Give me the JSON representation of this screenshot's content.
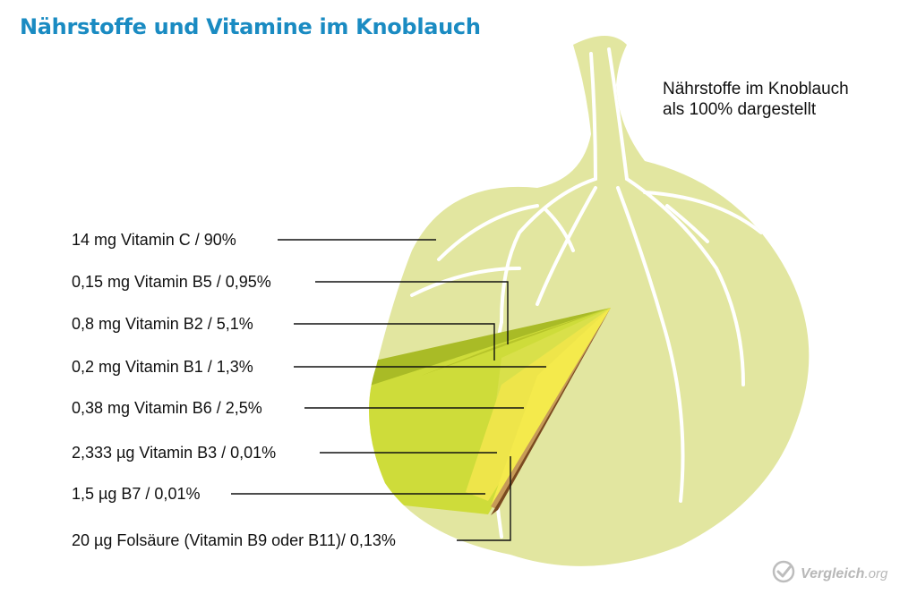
{
  "title": "Nährstoffe und Vitamine im Knoblauch",
  "note_lines": [
    "Nährstoffe im Knoblauch",
    "als 100% dargestellt"
  ],
  "labels": [
    "14 mg Vitamin C / 90%",
    "0,15 mg Vitamin B5 / 0,95%",
    "0,8 mg Vitamin B2 / 5,1%",
    "0,2 mg Vitamin B1 / 1,3%",
    "0,38 mg Vitamin B6 / 2,5%",
    "2,333 µg Vitamin B3 / 0,01%",
    "1,5 µg B7 / 0,01%",
    "20 µg Folsäure (Vitamin B9 oder B11)/ 0,13%"
  ],
  "logo": {
    "name": "Vergleich",
    "tld": ".org",
    "icon": "check-circle-icon"
  },
  "colors": {
    "title": "#1a8bc2",
    "bulb": "#e2e6a0",
    "vitamin_c": "#cedc3a",
    "b5": "#b7c52a",
    "b2": "#9fb128",
    "b1": "#d9e04a",
    "b6": "#e8e245",
    "b3": "#f2e84a",
    "b7": "#c7a060",
    "folate": "#8a5a2a"
  }
}
